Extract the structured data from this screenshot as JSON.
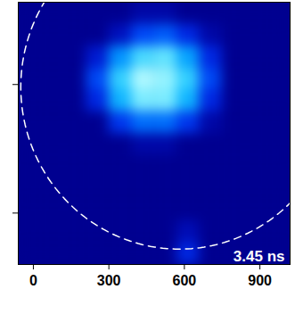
{
  "chart_data": {
    "type": "heatmap",
    "annotation": "3.45 ns",
    "xlim": [
      -60,
      1020
    ],
    "ylim": [
      0,
      1020
    ],
    "xticks": [
      0,
      300,
      600,
      900
    ],
    "yticks": [
      200,
      700
    ],
    "tick_labels": "x",
    "x_bins": [
      -60,
      30,
      120,
      210,
      300,
      390,
      480,
      570,
      660,
      750,
      840,
      930,
      1020
    ],
    "y_bins": [
      0,
      85,
      170,
      255,
      340,
      425,
      510,
      595,
      680,
      765,
      850,
      935,
      1020
    ],
    "zlim": [
      0,
      1
    ],
    "cells": [
      [
        0,
        0,
        0,
        0,
        0,
        0,
        0,
        0.2,
        0,
        0,
        0,
        0
      ],
      [
        0,
        0,
        0,
        0,
        0,
        0,
        0,
        0.08,
        0,
        0,
        0,
        0
      ],
      [
        0,
        0,
        0,
        0,
        0,
        0,
        0,
        0,
        0,
        0,
        0,
        0
      ],
      [
        0,
        0,
        0,
        0,
        0,
        0,
        0,
        0,
        0,
        0,
        0,
        0
      ],
      [
        0,
        0,
        0,
        0,
        0,
        0,
        0,
        0,
        0,
        0,
        0,
        0
      ],
      [
        0,
        0,
        0,
        0,
        0,
        0.05,
        0.05,
        0,
        0,
        0,
        0,
        0
      ],
      [
        0,
        0,
        0,
        0,
        0.25,
        0.4,
        0.4,
        0.25,
        0.05,
        0,
        0,
        0
      ],
      [
        0,
        0,
        0,
        0.2,
        0.6,
        0.85,
        0.85,
        0.6,
        0.2,
        0,
        0,
        0
      ],
      [
        0,
        0,
        0,
        0.3,
        0.7,
        0.95,
        0.9,
        0.7,
        0.3,
        0,
        0,
        0
      ],
      [
        0,
        0,
        0,
        0.15,
        0.5,
        0.75,
        0.8,
        0.55,
        0.2,
        0,
        0,
        0
      ],
      [
        0,
        0,
        0,
        0,
        0.1,
        0.3,
        0.35,
        0.2,
        0.05,
        0,
        0,
        0
      ],
      [
        0,
        0,
        0,
        0,
        0,
        0.05,
        0.05,
        0,
        0,
        0,
        0,
        0
      ]
    ],
    "circle": {
      "cx": 580,
      "cy": 690,
      "r": 630,
      "line_style": "dashed"
    }
  }
}
